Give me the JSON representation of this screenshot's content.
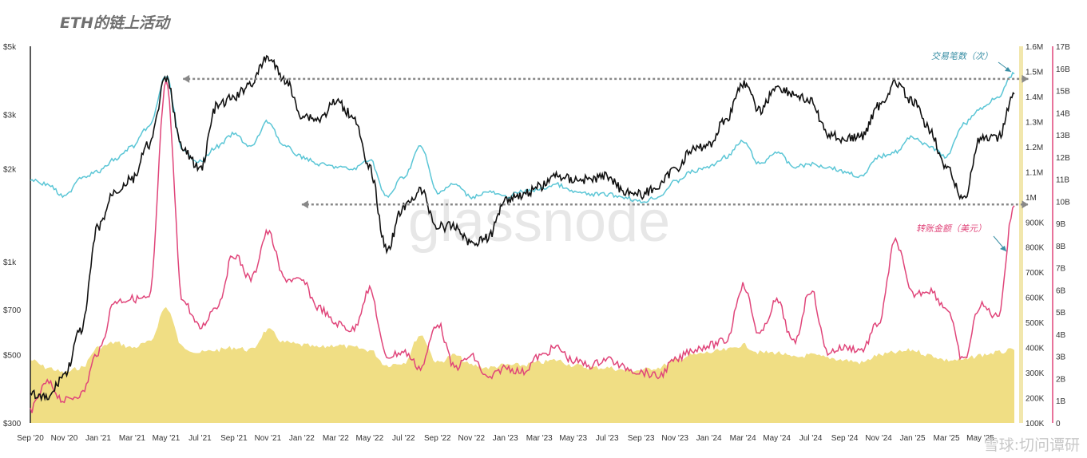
{
  "title": "ETH的链上活动",
  "watermark": "glassnode",
  "footer_watermark": "雪球:切问谭研",
  "colors": {
    "price": "#111111",
    "tx_count": "#5bc6d6",
    "transfer_volume": "#e0457a",
    "fill": "#f0de84",
    "dashed": "#888888",
    "tx_label": "#3a8fa5",
    "tv_label": "#e0457a",
    "right2_axis": "#e0457a",
    "right1_axis_fill": "#f2e7ad"
  },
  "chart_data": {
    "type": "line",
    "x_ticks": [
      "Sep '20",
      "Nov '20",
      "Jan '21",
      "Mar '21",
      "May '21",
      "Jul '21",
      "Sep '21",
      "Nov '21",
      "Jan '22",
      "Mar '22",
      "May '22",
      "Jul '22",
      "Sep '22",
      "Nov '22",
      "Jan '23",
      "Mar '23",
      "May '23",
      "Jul '23",
      "Sep '23",
      "Nov '23",
      "Jan '24",
      "Mar '24",
      "May '24",
      "Jul '24",
      "Sep '24",
      "Nov '24",
      "Jan '25",
      "Mar '25",
      "May '25"
    ],
    "left_axis": {
      "ticks": [
        "$5k",
        "$3k",
        "$2k",
        "$1k",
        "$700",
        "$500",
        "$300"
      ],
      "values": [
        5000,
        3000,
        2000,
        1000,
        700,
        500,
        300
      ],
      "scale": "log"
    },
    "right_axis_1": {
      "ticks": [
        "1.6M",
        "1.5M",
        "1.4M",
        "1.3M",
        "1.2M",
        "1.1M",
        "1M",
        "900K",
        "800K",
        "700K",
        "600K",
        "500K",
        "400K",
        "300K",
        "200K",
        "100K"
      ],
      "range": [
        100000,
        1600000
      ]
    },
    "right_axis_2": {
      "ticks": [
        "17B",
        "16B",
        "15B",
        "14B",
        "13B",
        "12B",
        "11B",
        "10B",
        "9B",
        "8B",
        "7B",
        "6B",
        "5B",
        "4B",
        "3B",
        "2B",
        "1B",
        "0"
      ],
      "range": [
        0,
        17000000000
      ]
    },
    "annotations": [
      {
        "text": "交易笔数（次）",
        "series": "tx_count"
      },
      {
        "text": "转账金额（美元）",
        "series": "transfer_volume"
      }
    ],
    "reference_lines": [
      {
        "axis": "right_axis_1",
        "value": 1470000,
        "from": "Jun '21",
        "to": "May '25"
      },
      {
        "axis": "right_axis_1",
        "value": 970000,
        "from": "Jan '22",
        "to": "May '25"
      }
    ],
    "series": [
      {
        "id": "price",
        "axis": "left",
        "points": [
          [
            "Sep '20",
            370
          ],
          [
            "Oct '20",
            360
          ],
          [
            "Nov '20",
            430
          ],
          [
            "Dec '20",
            600
          ],
          [
            "Jan '21",
            1300
          ],
          [
            "Feb '21",
            1700
          ],
          [
            "Mar '21",
            1850
          ],
          [
            "Apr '21",
            2400
          ],
          [
            "May '21",
            3900
          ],
          [
            "Jun '21",
            2300
          ],
          [
            "Jul '21",
            2000
          ],
          [
            "Aug '21",
            3200
          ],
          [
            "Sep '21",
            3400
          ],
          [
            "Oct '21",
            3800
          ],
          [
            "Nov '21",
            4600
          ],
          [
            "Dec '21",
            3900
          ],
          [
            "Jan '22",
            3000
          ],
          [
            "Feb '22",
            2900
          ],
          [
            "Mar '22",
            3300
          ],
          [
            "Apr '22",
            3000
          ],
          [
            "May '22",
            2000
          ],
          [
            "Jun '22",
            1100
          ],
          [
            "Jul '22",
            1500
          ],
          [
            "Aug '22",
            1700
          ],
          [
            "Sep '22",
            1300
          ],
          [
            "Oct '22",
            1300
          ],
          [
            "Nov '22",
            1150
          ],
          [
            "Dec '22",
            1200
          ],
          [
            "Jan '23",
            1600
          ],
          [
            "Feb '23",
            1650
          ],
          [
            "Mar '23",
            1750
          ],
          [
            "Apr '23",
            1900
          ],
          [
            "May '23",
            1850
          ],
          [
            "Jun '23",
            1850
          ],
          [
            "Jul '23",
            1900
          ],
          [
            "Aug '23",
            1700
          ],
          [
            "Sep '23",
            1650
          ],
          [
            "Oct '23",
            1750
          ],
          [
            "Nov '23",
            2000
          ],
          [
            "Dec '23",
            2300
          ],
          [
            "Jan '24",
            2400
          ],
          [
            "Feb '24",
            2900
          ],
          [
            "Mar '24",
            3800
          ],
          [
            "Apr '24",
            3100
          ],
          [
            "May '24",
            3700
          ],
          [
            "Jun '24",
            3500
          ],
          [
            "Jul '24",
            3300
          ],
          [
            "Aug '24",
            2600
          ],
          [
            "Sep '24",
            2500
          ],
          [
            "Oct '24",
            2550
          ],
          [
            "Nov '24",
            3200
          ],
          [
            "Dec '24",
            3800
          ],
          [
            "Jan '25",
            3300
          ],
          [
            "Feb '25",
            2700
          ],
          [
            "Mar '25",
            2000
          ],
          [
            "Apr '25",
            1600
          ],
          [
            "May '25",
            2500
          ],
          [
            "Jun '25",
            2500
          ],
          [
            "Jul '25",
            3500
          ]
        ]
      },
      {
        "id": "tx_count",
        "axis": "right_axis_1",
        "points": [
          [
            "Sep '20",
            1070000
          ],
          [
            "Oct '20",
            1050000
          ],
          [
            "Nov '20",
            1000000
          ],
          [
            "Dec '20",
            1080000
          ],
          [
            "Jan '21",
            1100000
          ],
          [
            "Feb '21",
            1150000
          ],
          [
            "Mar '21",
            1200000
          ],
          [
            "Apr '21",
            1280000
          ],
          [
            "May '21",
            1480000
          ],
          [
            "Jun '21",
            1180000
          ],
          [
            "Jul '21",
            1140000
          ],
          [
            "Aug '21",
            1200000
          ],
          [
            "Sep '21",
            1250000
          ],
          [
            "Oct '21",
            1200000
          ],
          [
            "Nov '21",
            1300000
          ],
          [
            "Dec '21",
            1200000
          ],
          [
            "Jan '22",
            1160000
          ],
          [
            "Feb '22",
            1130000
          ],
          [
            "Mar '22",
            1120000
          ],
          [
            "Apr '22",
            1110000
          ],
          [
            "May '22",
            1150000
          ],
          [
            "Jun '22",
            1000000
          ],
          [
            "Jul '22",
            1080000
          ],
          [
            "Aug '22",
            1200000
          ],
          [
            "Sep '22",
            1020000
          ],
          [
            "Oct '22",
            1050000
          ],
          [
            "Nov '22",
            1000000
          ],
          [
            "Dec '22",
            1020000
          ],
          [
            "Jan '23",
            1000000
          ],
          [
            "Feb '23",
            1020000
          ],
          [
            "Mar '23",
            1030000
          ],
          [
            "Apr '23",
            1050000
          ],
          [
            "May '23",
            1020000
          ],
          [
            "Jun '23",
            1010000
          ],
          [
            "Jul '23",
            1010000
          ],
          [
            "Aug '23",
            1000000
          ],
          [
            "Sep '23",
            980000
          ],
          [
            "Oct '23",
            1000000
          ],
          [
            "Nov '23",
            1060000
          ],
          [
            "Dec '23",
            1100000
          ],
          [
            "Jan '24",
            1120000
          ],
          [
            "Feb '24",
            1160000
          ],
          [
            "Mar '24",
            1220000
          ],
          [
            "Apr '24",
            1130000
          ],
          [
            "May '24",
            1180000
          ],
          [
            "Jun '24",
            1120000
          ],
          [
            "Jul '24",
            1130000
          ],
          [
            "Aug '24",
            1120000
          ],
          [
            "Sep '24",
            1100000
          ],
          [
            "Oct '24",
            1080000
          ],
          [
            "Nov '24",
            1160000
          ],
          [
            "Dec '24",
            1180000
          ],
          [
            "Jan '25",
            1240000
          ],
          [
            "Feb '25",
            1200000
          ],
          [
            "Mar '25",
            1160000
          ],
          [
            "Apr '25",
            1290000
          ],
          [
            "May '25",
            1350000
          ],
          [
            "Jun '25",
            1400000
          ],
          [
            "Jul '25",
            1490000
          ]
        ]
      },
      {
        "id": "transfer_volume",
        "axis": "right_axis_2",
        "points": [
          [
            "Sep '20",
            600000000
          ],
          [
            "Oct '20",
            1800000000
          ],
          [
            "Nov '20",
            1000000000
          ],
          [
            "Dec '20",
            1300000000
          ],
          [
            "Jan '21",
            3200000000
          ],
          [
            "Feb '21",
            5500000000
          ],
          [
            "Mar '21",
            5600000000
          ],
          [
            "Apr '21",
            5600000000
          ],
          [
            "May '21",
            15300000000
          ],
          [
            "Jun '21",
            5500000000
          ],
          [
            "Jul '21",
            4300000000
          ],
          [
            "Aug '21",
            5300000000
          ],
          [
            "Sep '21",
            7600000000
          ],
          [
            "Oct '21",
            6500000000
          ],
          [
            "Nov '21",
            8600000000
          ],
          [
            "Dec '21",
            6500000000
          ],
          [
            "Jan '22",
            6400000000
          ],
          [
            "Feb '22",
            5200000000
          ],
          [
            "Mar '22",
            4500000000
          ],
          [
            "Apr '22",
            4200000000
          ],
          [
            "May '22",
            6000000000
          ],
          [
            "Jun '22",
            3000000000
          ],
          [
            "Jul '22",
            3200000000
          ],
          [
            "Aug '22",
            2500000000
          ],
          [
            "Sep '22",
            4500000000
          ],
          [
            "Oct '22",
            2500000000
          ],
          [
            "Nov '22",
            3000000000
          ],
          [
            "Dec '22",
            2000000000
          ],
          [
            "Jan '23",
            2500000000
          ],
          [
            "Feb '23",
            2300000000
          ],
          [
            "Mar '23",
            3000000000
          ],
          [
            "Apr '23",
            3400000000
          ],
          [
            "May '23",
            2800000000
          ],
          [
            "Jun '23",
            2600000000
          ],
          [
            "Jul '23",
            2900000000
          ],
          [
            "Aug '23",
            2500000000
          ],
          [
            "Sep '23",
            2300000000
          ],
          [
            "Oct '23",
            2100000000
          ],
          [
            "Nov '23",
            2800000000
          ],
          [
            "Dec '23",
            3300000000
          ],
          [
            "Jan '24",
            3500000000
          ],
          [
            "Feb '24",
            3700000000
          ],
          [
            "Mar '24",
            6200000000
          ],
          [
            "Apr '24",
            4000000000
          ],
          [
            "May '24",
            5500000000
          ],
          [
            "Jun '24",
            3600000000
          ],
          [
            "Jul '24",
            6000000000
          ],
          [
            "Aug '24",
            3200000000
          ],
          [
            "Sep '24",
            3400000000
          ],
          [
            "Oct '24",
            3300000000
          ],
          [
            "Nov '24",
            4500000000
          ],
          [
            "Dec '24",
            8200000000
          ],
          [
            "Jan '25",
            5800000000
          ],
          [
            "Feb '25",
            6000000000
          ],
          [
            "Mar '25",
            5200000000
          ],
          [
            "Apr '25",
            2800000000
          ],
          [
            "May '25",
            5300000000
          ],
          [
            "Jun '25",
            4800000000
          ],
          [
            "Jul '25",
            9800000000
          ]
        ]
      },
      {
        "id": "fill",
        "axis": "right_axis_1",
        "type": "area",
        "points": [
          [
            "Sep '20",
            350000
          ],
          [
            "Oct '20",
            320000
          ],
          [
            "Nov '20",
            300000
          ],
          [
            "Dec '20",
            320000
          ],
          [
            "Jan '21",
            400000
          ],
          [
            "Feb '21",
            420000
          ],
          [
            "Mar '21",
            400000
          ],
          [
            "Apr '21",
            420000
          ],
          [
            "May '21",
            560000
          ],
          [
            "Jun '21",
            400000
          ],
          [
            "Jul '21",
            380000
          ],
          [
            "Aug '21",
            390000
          ],
          [
            "Sep '21",
            400000
          ],
          [
            "Oct '21",
            390000
          ],
          [
            "Nov '21",
            470000
          ],
          [
            "Dec '21",
            420000
          ],
          [
            "Jan '22",
            410000
          ],
          [
            "Feb '22",
            400000
          ],
          [
            "Mar '22",
            410000
          ],
          [
            "Apr '22",
            400000
          ],
          [
            "May '22",
            390000
          ],
          [
            "Jun '22",
            330000
          ],
          [
            "Jul '22",
            340000
          ],
          [
            "Aug '22",
            450000
          ],
          [
            "Sep '22",
            340000
          ],
          [
            "Oct '22",
            370000
          ],
          [
            "Nov '22",
            330000
          ],
          [
            "Dec '22",
            320000
          ],
          [
            "Jan '23",
            330000
          ],
          [
            "Feb '23",
            330000
          ],
          [
            "Mar '23",
            340000
          ],
          [
            "Apr '23",
            350000
          ],
          [
            "May '23",
            330000
          ],
          [
            "Jun '23",
            320000
          ],
          [
            "Jul '23",
            320000
          ],
          [
            "Aug '23",
            310000
          ],
          [
            "Sep '23",
            310000
          ],
          [
            "Oct '23",
            320000
          ],
          [
            "Nov '23",
            350000
          ],
          [
            "Dec '23",
            370000
          ],
          [
            "Jan '24",
            380000
          ],
          [
            "Feb '24",
            390000
          ],
          [
            "Mar '24",
            410000
          ],
          [
            "Apr '24",
            380000
          ],
          [
            "May '24",
            380000
          ],
          [
            "Jun '24",
            360000
          ],
          [
            "Jul '24",
            370000
          ],
          [
            "Aug '24",
            360000
          ],
          [
            "Sep '24",
            350000
          ],
          [
            "Oct '24",
            340000
          ],
          [
            "Nov '24",
            370000
          ],
          [
            "Dec '24",
            380000
          ],
          [
            "Jan '25",
            390000
          ],
          [
            "Feb '25",
            370000
          ],
          [
            "Mar '25",
            350000
          ],
          [
            "Apr '25",
            350000
          ],
          [
            "May '25",
            370000
          ],
          [
            "Jun '25",
            380000
          ],
          [
            "Jul '25",
            390000
          ]
        ]
      }
    ]
  }
}
